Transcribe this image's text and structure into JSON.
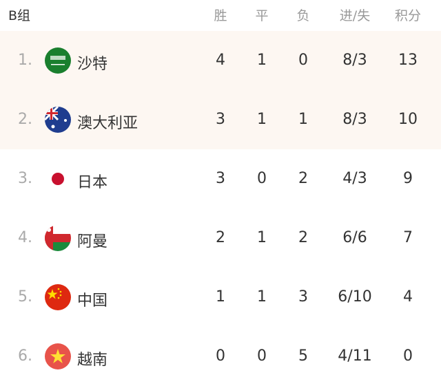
{
  "header": {
    "group": "B组",
    "cols": [
      "胜",
      "平",
      "负",
      "进/失",
      "积分"
    ]
  },
  "rows": [
    {
      "rank": "1.",
      "flag": "saudi-arabia-flag-icon",
      "name": "沙特",
      "w": "4",
      "d": "1",
      "l": "0",
      "gd": "8/3",
      "pts": "13"
    },
    {
      "rank": "2.",
      "flag": "australia-flag-icon",
      "name": "澳大利亚",
      "w": "3",
      "d": "1",
      "l": "1",
      "gd": "8/3",
      "pts": "10"
    },
    {
      "rank": "3.",
      "flag": "japan-flag-icon",
      "name": "日本",
      "w": "3",
      "d": "0",
      "l": "2",
      "gd": "4/3",
      "pts": "9"
    },
    {
      "rank": "4.",
      "flag": "oman-flag-icon",
      "name": "阿曼",
      "w": "2",
      "d": "1",
      "l": "2",
      "gd": "6/6",
      "pts": "7"
    },
    {
      "rank": "5.",
      "flag": "china-flag-icon",
      "name": "中国",
      "w": "1",
      "d": "1",
      "l": "3",
      "gd": "6/10",
      "pts": "4"
    },
    {
      "rank": "6.",
      "flag": "vietnam-flag-icon",
      "name": "越南",
      "w": "0",
      "d": "0",
      "l": "5",
      "gd": "4/11",
      "pts": "0"
    }
  ],
  "colors": {
    "highlight": "#fdf7f2"
  }
}
